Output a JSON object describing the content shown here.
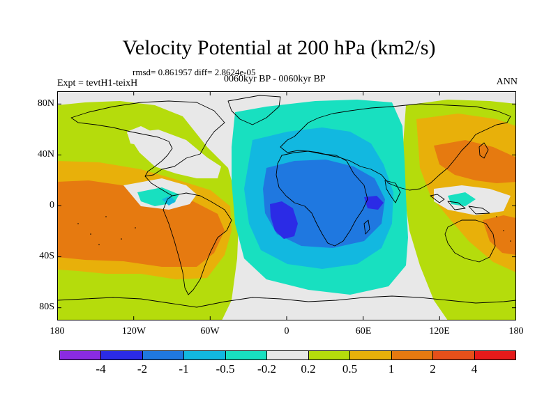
{
  "title": "Velocity Potential at 200 hPa (km2/s)",
  "stats_line": "rmsd= 0.861957 diff= 2.8624e-05",
  "experiment": "Expt = tevtH1-teixH",
  "period": "0060kyr BP - 0060kyr BP",
  "season": "ANN",
  "lat_ticks": [
    "80N",
    "40N",
    "0",
    "40S",
    "80S"
  ],
  "lon_ticks": [
    "180",
    "120W",
    "60W",
    "0",
    "60E",
    "120E",
    "180"
  ],
  "colorbar": {
    "labels": [
      "-4",
      "-2",
      "-1",
      "-0.5",
      "-0.2",
      "0.2",
      "0.5",
      "1",
      "2",
      "4"
    ],
    "colors": [
      "#8a2be2",
      "#2b2be6",
      "#1f78e0",
      "#12b8e0",
      "#18e0c0",
      "#e8e8e8",
      "#b5dc0c",
      "#e8b00a",
      "#e67a10",
      "#e6501a",
      "#e61a1a"
    ]
  },
  "map": {
    "projection": "cylindrical equidistant",
    "lon_range": [
      -180,
      180
    ],
    "lat_range": [
      -90,
      90
    ],
    "field_colors": {
      "neutral": "#e8e8e8",
      "pos_0_2": "#b5dc0c",
      "pos_0_5": "#e8b00a",
      "pos_1": "#e67a10",
      "neg_0_2": "#18e0c0",
      "neg_0_5": "#12b8e0",
      "neg_1": "#1f78e0",
      "neg_2": "#2b2be6"
    }
  }
}
